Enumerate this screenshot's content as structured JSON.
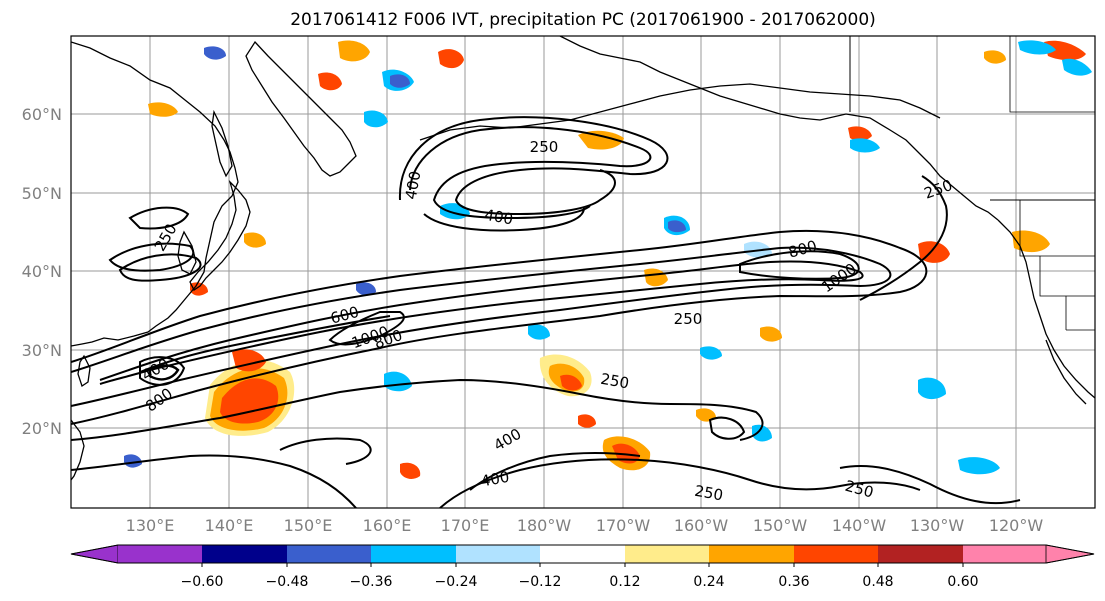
{
  "title": "2017061412 F006 IVT, precipitation PC (2017061900 - 2017062000)",
  "lat_labels": [
    "60°N",
    "50°N",
    "40°N",
    "30°N",
    "20°N"
  ],
  "lon_labels": [
    "130°E",
    "140°E",
    "150°E",
    "160°E",
    "170°E",
    "180°W",
    "170°W",
    "160°W",
    "150°W",
    "140°W",
    "130°W",
    "120°W"
  ],
  "contour_labels": [
    "250",
    "400",
    "400",
    "250",
    "800",
    "1000",
    "600",
    "1000",
    "800",
    "400",
    "800",
    "250",
    "250",
    "400",
    "250",
    "250",
    "400",
    "250"
  ],
  "colorbar": {
    "tick_labels": [
      "−0.60",
      "−0.48",
      "−0.36",
      "−0.24",
      "−0.12",
      "0.12",
      "0.24",
      "0.36",
      "0.48",
      "0.60"
    ],
    "colors": [
      "#9932cc",
      "#00008b",
      "#3a5fcd",
      "#00bfff",
      "#b0e2ff",
      "#ffffff",
      "#ffec8b",
      "#ffa500",
      "#ff4500",
      "#b22222",
      "#ff82ab"
    ]
  }
}
